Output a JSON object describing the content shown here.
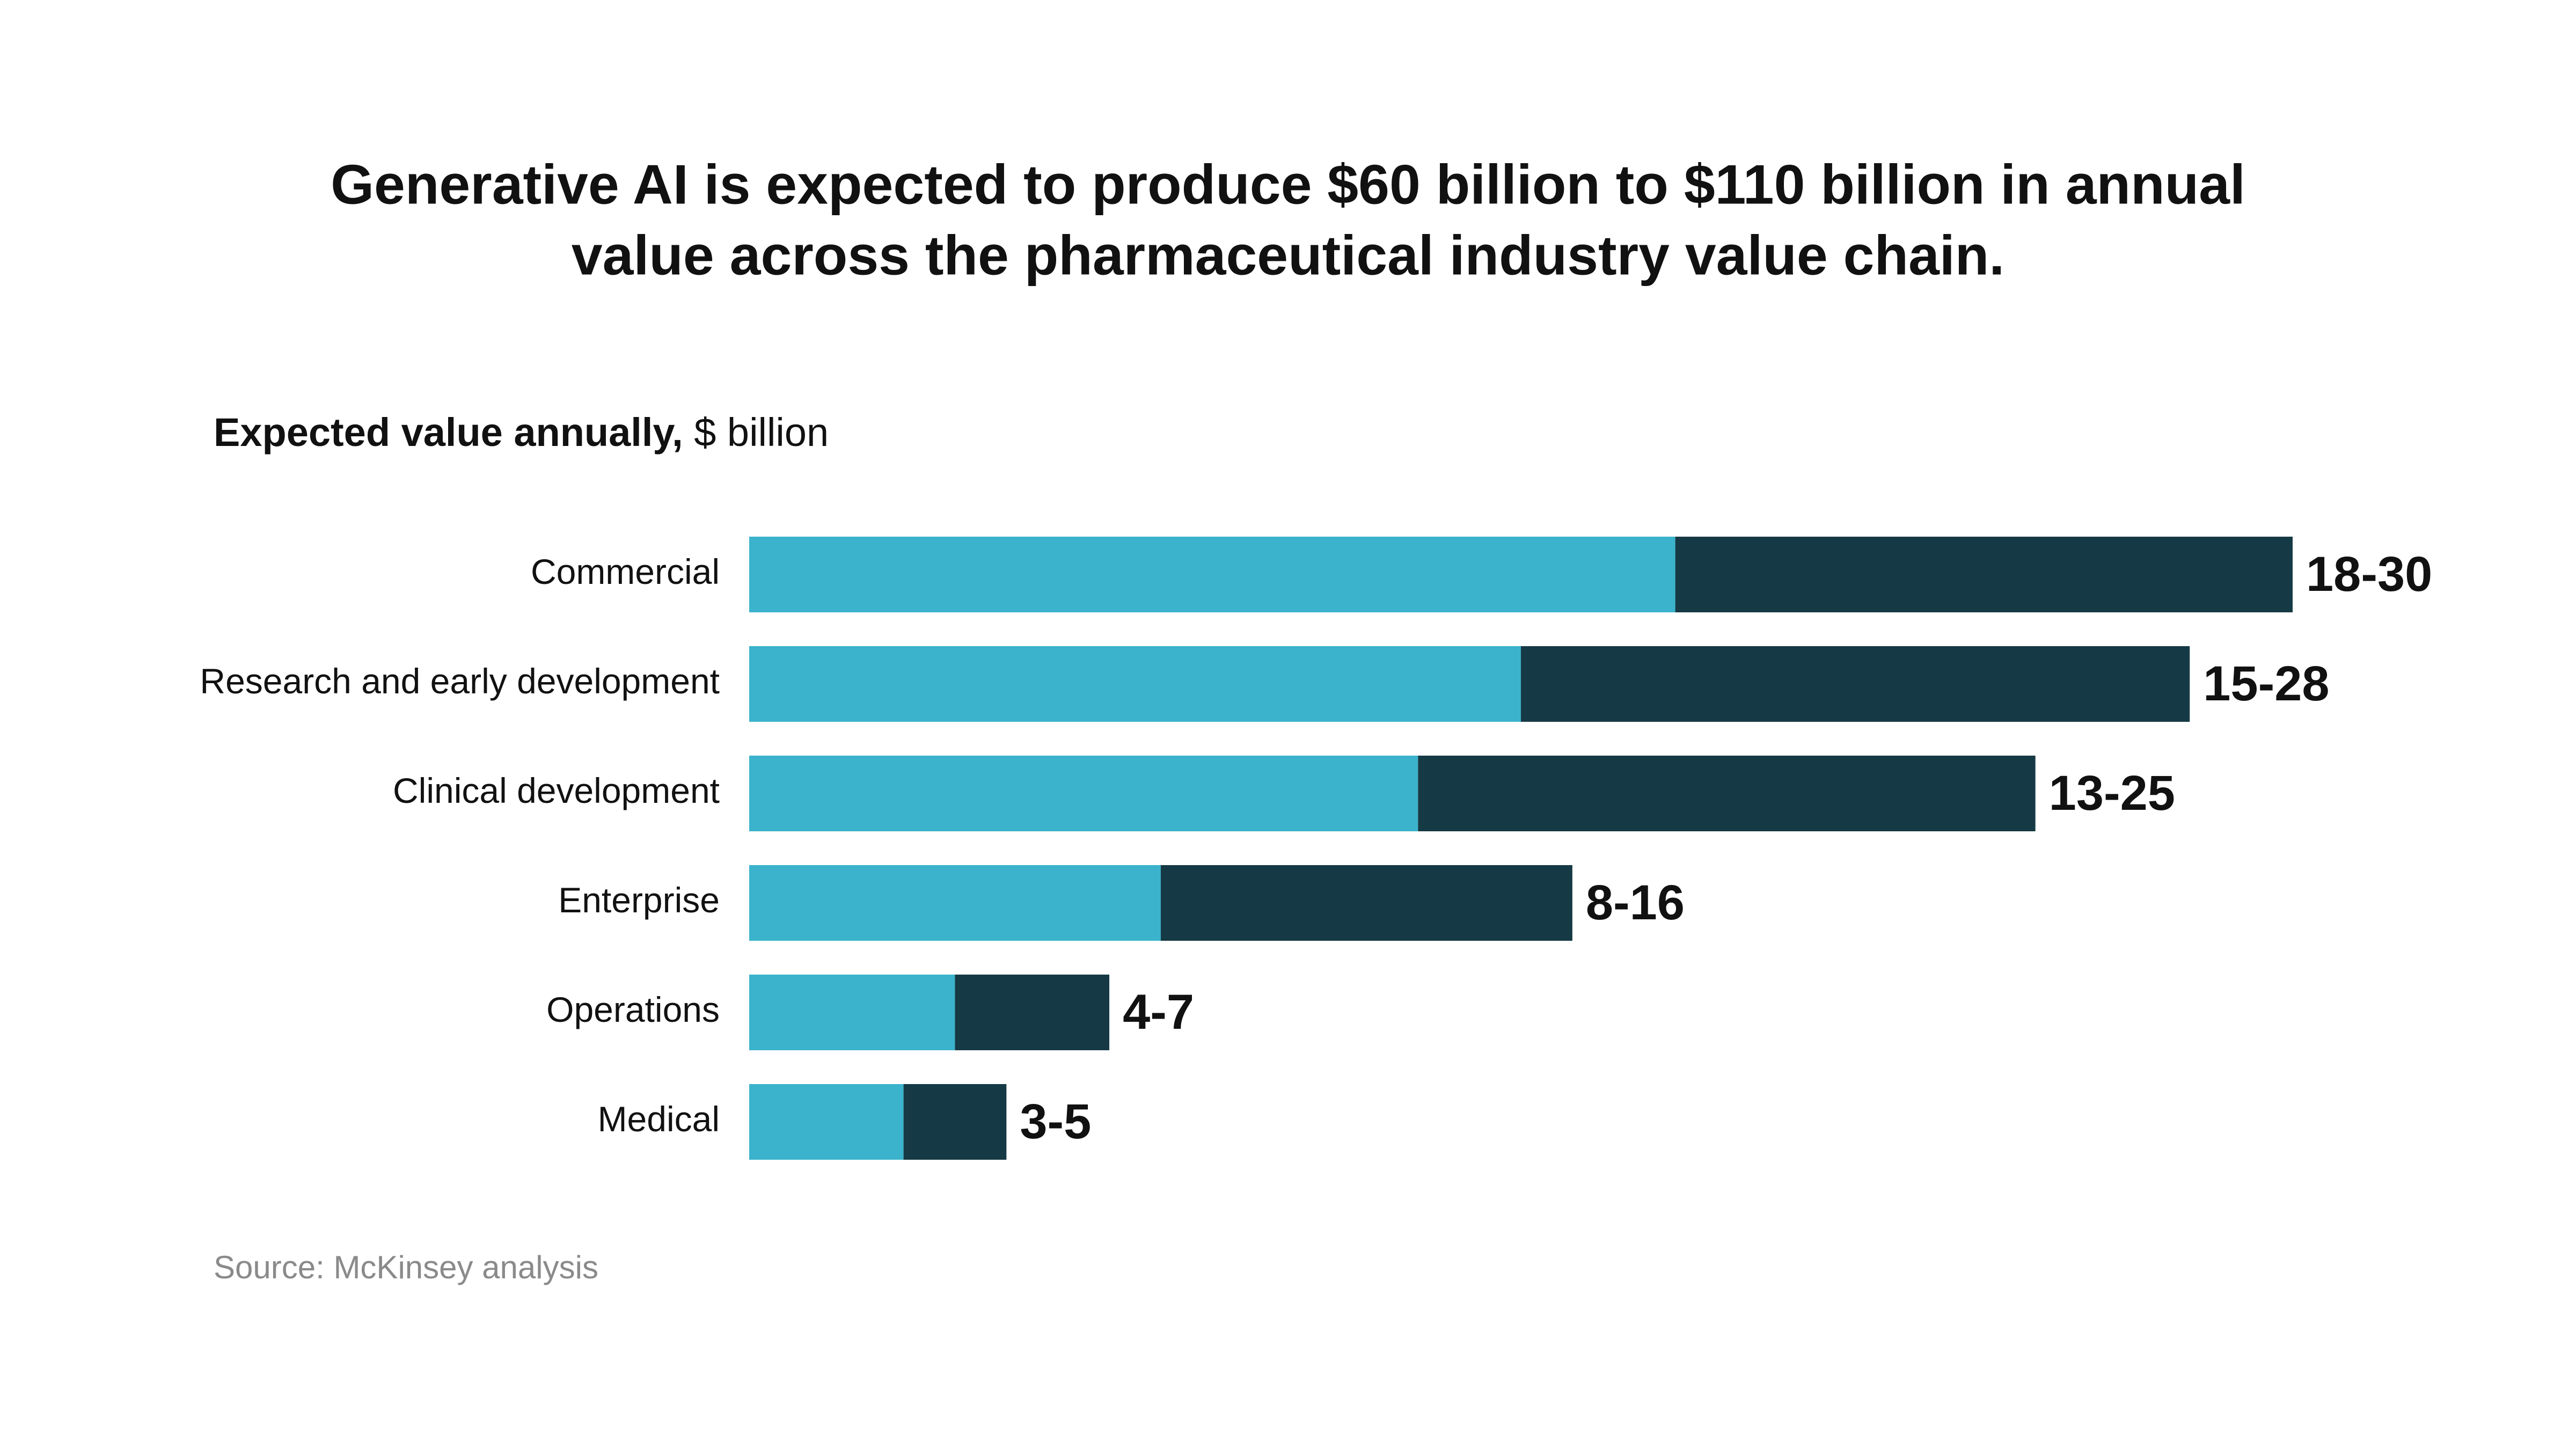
{
  "chart_data": {
    "type": "range_bar",
    "title": [
      "Generative AI is expected to produce $60 billion to $110 billion in annual",
      "value across the pharmaceutical industry value chain."
    ],
    "subtitle": "Expected value annually,",
    "unit": "$ billion",
    "categories": [
      "Commercial",
      "Research and early development",
      "Clinical development",
      "Enterprise",
      "Operations",
      "Medical"
    ],
    "low": [
      18,
      15,
      13,
      8,
      4,
      3
    ],
    "high": [
      30,
      28,
      25,
      16,
      7,
      5
    ],
    "value_labels": [
      "18-30",
      "15-28",
      "13-25",
      "8-16",
      "4-7",
      "3-5"
    ],
    "low_color": "#3bb3cc",
    "high_color": "#163a45",
    "source": "Source: McKinsey analysis"
  }
}
